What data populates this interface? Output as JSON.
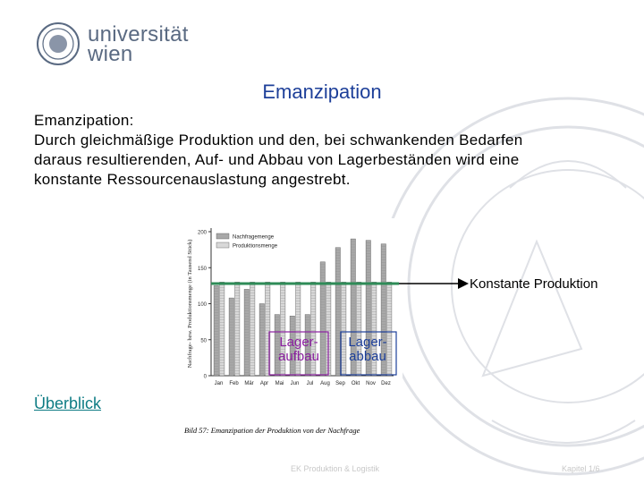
{
  "header": {
    "logo_text_line1": "universität",
    "logo_text_line2": "wien"
  },
  "slide": {
    "title": "Emanzipation",
    "body_lines": [
      "Emanzipation:",
      "Durch gleichmäßige Produktion und den, bei schwankenden Bedarfen",
      "daraus resultierenden, Auf- und Abbau von Lagerbeständen wird eine",
      "konstante Ressourcenauslastung angestrebt."
    ],
    "link_label": "Überblick"
  },
  "annotations": {
    "constant_production": "Konstante Produktion",
    "lager_aufbau_line1": "Lager-",
    "lager_aufbau_line2": "aufbau",
    "lager_abbau_line1": "Lager-",
    "lager_abbau_line2": "abbau"
  },
  "footer": {
    "left": "EK Produktion & Logistik",
    "right": "Kapitel 1/6"
  },
  "colors": {
    "title": "#1d3f99",
    "link": "#0e7c84",
    "constant_line": "#2e8b57",
    "aufbau_text": "#8b1fa0",
    "abbau_text": "#1d3f99"
  },
  "chart_data": {
    "type": "bar",
    "caption": "Bild 57: Emanzipation der Produktion von der Nachfrage",
    "ylabel": "Nachfrage- bzw. Produktionsmenge (in Tausend Stück)",
    "xlabel": "",
    "ylim": [
      0,
      200
    ],
    "yticks": [
      0,
      50,
      100,
      150,
      200
    ],
    "categories": [
      "Jan",
      "Feb",
      "Mär",
      "Apr",
      "Mai",
      "Jun",
      "Jul",
      "Aug",
      "Sep",
      "Okt",
      "Nov",
      "Dez"
    ],
    "legend_position": "top-left",
    "series": [
      {
        "name": "Nachfragemenge",
        "values": [
          125,
          108,
          120,
          100,
          85,
          83,
          85,
          158,
          178,
          190,
          188,
          183
        ]
      },
      {
        "name": "Produktionsmenge",
        "values": [
          130,
          130,
          130,
          130,
          130,
          130,
          130,
          130,
          130,
          130,
          130,
          130
        ]
      }
    ]
  }
}
